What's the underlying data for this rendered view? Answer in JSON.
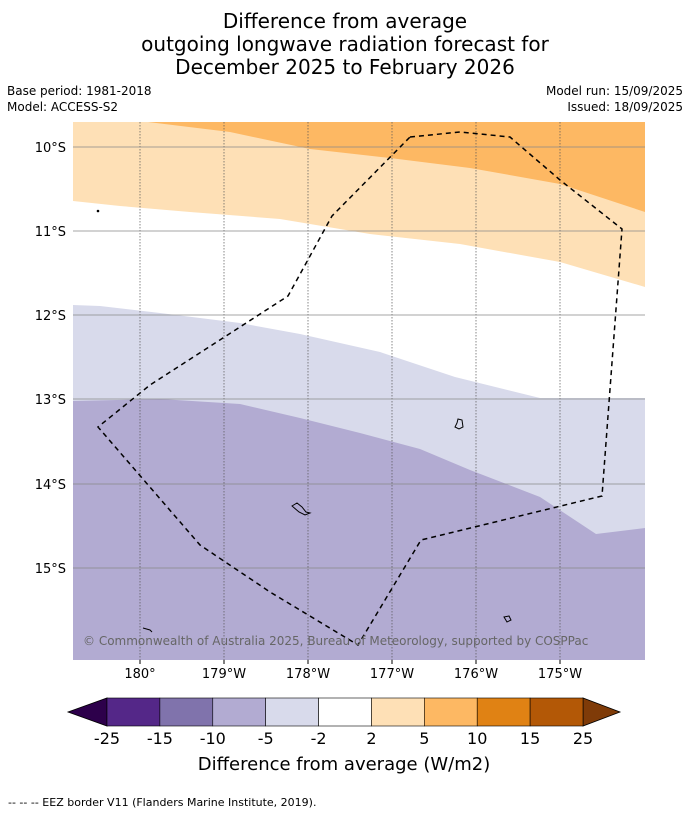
{
  "title": {
    "line1": "Difference from average",
    "line2": "outgoing longwave radiation forecast for",
    "line3": "December 2025 to February 2026"
  },
  "meta": {
    "base_period": "Base period: 1981-2018",
    "model": "Model: ACCESS-S2",
    "model_run": "Model run: 15/09/2025",
    "issued": "Issued: 18/09/2025"
  },
  "map": {
    "lat_labels": [
      "10°S",
      "11°S",
      "12°S",
      "13°S",
      "14°S",
      "15°S"
    ],
    "lon_labels": [
      "180°",
      "179°W",
      "178°W",
      "177°W",
      "176°W",
      "175°W"
    ],
    "copyright": "© Commonwealth of Australia 2025, Bureau of Meteorology, supported by COSPPac",
    "colors": {
      "orange_mid": "#fdb863",
      "orange_light": "#fee0b6",
      "white": "#ffffff",
      "purple_light": "#d8daeb",
      "purple_mid": "#b2abd2"
    }
  },
  "colorbar": {
    "ticks": [
      "-25",
      "-15",
      "-10",
      "-5",
      "-2",
      "2",
      "5",
      "10",
      "15",
      "25"
    ],
    "colors": [
      "#2d004b",
      "#542788",
      "#8073ac",
      "#b2abd2",
      "#d8daeb",
      "#ffffff",
      "#fee0b6",
      "#fdb863",
      "#e08214",
      "#b35806",
      "#7f3b08"
    ],
    "label": "Difference from average (W/m2)"
  },
  "footnote": "--  --  -- EEZ border V11 (Flanders Marine Institute, 2019)."
}
